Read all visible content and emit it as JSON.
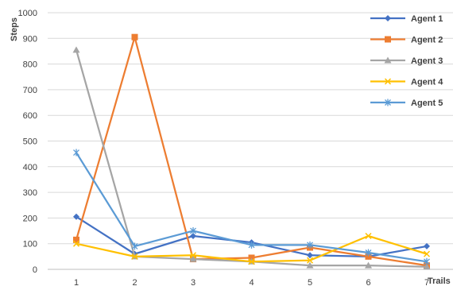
{
  "chart_data": {
    "type": "line",
    "title": "",
    "xlabel": "Trails",
    "ylabel": "Steps",
    "x": [
      1,
      2,
      3,
      4,
      5,
      6,
      7
    ],
    "x_tick_labels": [
      "1",
      "2",
      "3",
      "4",
      "5",
      "6",
      "7"
    ],
    "ylim": [
      0,
      1000
    ],
    "y_ticks": [
      0,
      100,
      200,
      300,
      400,
      500,
      600,
      700,
      800,
      900,
      1000
    ],
    "grid": "horizontal",
    "legend_position": "top-right",
    "series": [
      {
        "name": "Agent 1",
        "color": "#4472C4",
        "marker": "diamond",
        "values": [
          205,
          60,
          130,
          105,
          55,
          50,
          90
        ]
      },
      {
        "name": "Agent 2",
        "color": "#ED7D31",
        "marker": "square",
        "values": [
          115,
          905,
          40,
          45,
          85,
          50,
          15
        ]
      },
      {
        "name": "Agent 3",
        "color": "#A5A5A5",
        "marker": "triangle",
        "values": [
          855,
          50,
          40,
          30,
          15,
          15,
          10
        ]
      },
      {
        "name": "Agent 4",
        "color": "#FFC000",
        "marker": "x",
        "values": [
          100,
          50,
          55,
          30,
          35,
          130,
          60
        ]
      },
      {
        "name": "Agent 5",
        "color": "#5B9BD5",
        "marker": "star",
        "values": [
          455,
          90,
          150,
          95,
          95,
          65,
          30
        ]
      }
    ]
  }
}
